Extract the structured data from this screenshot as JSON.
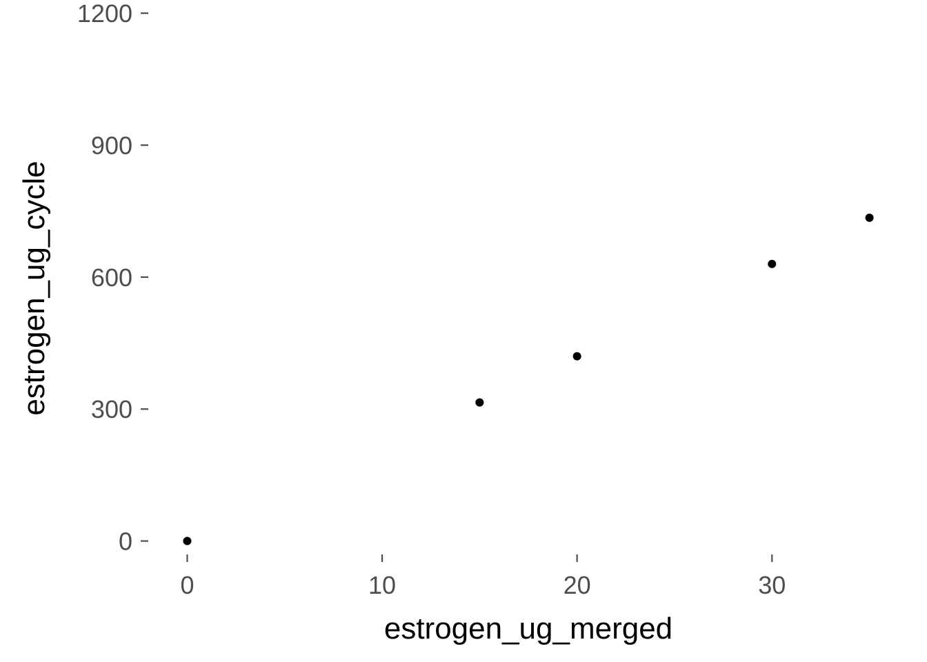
{
  "chart_data": {
    "type": "scatter",
    "title": "",
    "xlabel": "estrogen_ug_merged",
    "ylabel": "estrogen_ug_cycle",
    "x": [
      0,
      15,
      20,
      30,
      35
    ],
    "y": [
      0,
      315,
      420,
      630,
      735
    ],
    "xlim": [
      -1.75,
      36.75
    ],
    "ylim": [
      -36.75,
      1230
    ],
    "x_ticks": [
      0,
      10,
      20,
      30
    ],
    "x_tick_labels": [
      "0",
      "10",
      "20",
      "30"
    ],
    "y_ticks": [
      0,
      300,
      600,
      900,
      1200
    ],
    "y_tick_labels": [
      "0",
      "300",
      "600",
      "900",
      "1200"
    ],
    "grid": false,
    "legend": "none",
    "point_color": "#000000",
    "tick_color": "#4d4d4d"
  }
}
